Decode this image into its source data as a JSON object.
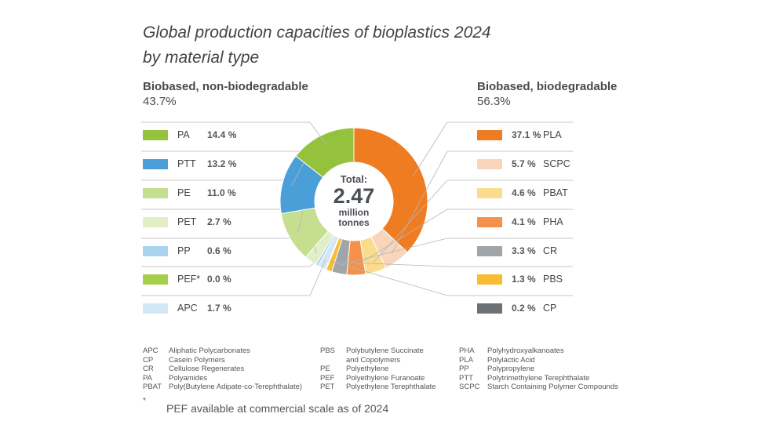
{
  "title_line1": "Global production capacities of bioplastics 2024",
  "title_line2": "by material type",
  "left_group": {
    "title": "Biobased, non-biodegradable",
    "percent": "43.7%"
  },
  "right_group": {
    "title": "Biobased, biodegradable",
    "percent": "56.3%"
  },
  "center": {
    "label": "Total:",
    "value": "2.47",
    "unit1": "million",
    "unit2": "tonnes"
  },
  "chart_data": {
    "type": "pie",
    "variant": "donut",
    "total": "2.47 million tonnes",
    "left_legend": [
      {
        "name": "PA",
        "value": 14.4,
        "text": "14.4 %",
        "color": "#95c23d"
      },
      {
        "name": "PTT",
        "value": 13.2,
        "text": "13.2 %",
        "color": "#4a9fd8"
      },
      {
        "name": "PE",
        "value": 11.0,
        "text": "11.0 %",
        "color": "#c5de8f"
      },
      {
        "name": "PET",
        "value": 2.7,
        "text": "2.7 %",
        "color": "#e2eec6"
      },
      {
        "name": "PP",
        "value": 0.6,
        "text": "0.6 %",
        "color": "#a9d3ef"
      },
      {
        "name": "PEF*",
        "value": 0.0,
        "text": "0.0 %",
        "color": "#a6cf4a"
      },
      {
        "name": "APC",
        "value": 1.7,
        "text": "1.7 %",
        "color": "#d2e8f7"
      }
    ],
    "right_legend": [
      {
        "name": "PLA",
        "value": 37.1,
        "text": "37.1 %",
        "color": "#f07c22"
      },
      {
        "name": "SCPC",
        "value": 5.7,
        "text": "5.7 %",
        "color": "#f8d5bb"
      },
      {
        "name": "PBAT",
        "value": 4.6,
        "text": "4.6 %",
        "color": "#fbdc8c"
      },
      {
        "name": "PHA",
        "value": 4.1,
        "text": "4.1 %",
        "color": "#f4914a"
      },
      {
        "name": "CR",
        "value": 3.3,
        "text": "3.3 %",
        "color": "#a0a5a8"
      },
      {
        "name": "PBS",
        "value": 1.3,
        "text": "1.3 %",
        "color": "#f8bd30"
      },
      {
        "name": "CP",
        "value": 0.2,
        "text": "0.2 %",
        "color": "#6c7175"
      }
    ]
  },
  "abbreviations": [
    [
      [
        "APC",
        "Aliphatic Polycarbonates"
      ],
      [
        "CP",
        "Casein Polymers"
      ],
      [
        "CR",
        "Cellulose Regenerates"
      ],
      [
        "PA",
        "Polyamides"
      ],
      [
        "PBAT",
        "Poly(Butylene Adipate-co-Terephthalate)"
      ]
    ],
    [
      [
        "PBS",
        "Polybutylene Succinate"
      ],
      [
        "",
        "and Copolymers"
      ],
      [
        "PE",
        "Polyethylene"
      ],
      [
        "PEF",
        "Polyethylene Furanoate"
      ],
      [
        "PET",
        "Polyethylene Terephthalate"
      ]
    ],
    [
      [
        "PHA",
        "Polyhydroxyalkanoates"
      ],
      [
        "PLA",
        "Polylactic Acid"
      ],
      [
        "PP",
        "Polypropylene"
      ],
      [
        "PTT",
        "Polytrimethylene Terephthalate"
      ],
      [
        "SCPC",
        "Starch Containing Polymer Compounds"
      ]
    ]
  ],
  "footnote_mark": "*",
  "footnote": "PEF available at commercial scale as of 2024"
}
